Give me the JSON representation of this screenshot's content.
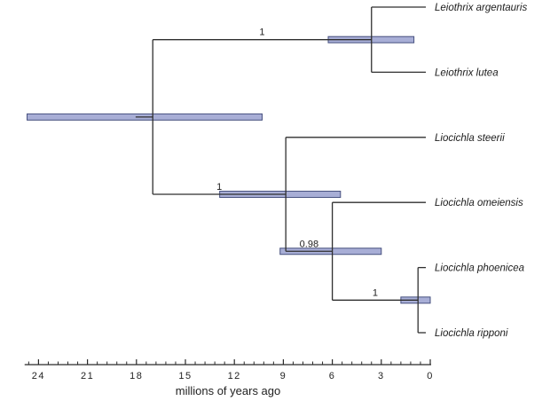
{
  "figure": {
    "background": "#ffffff",
    "description": "Bayesian chronogram (dated phylogenetic tree) with node age 95% HPD bars and posterior probability labels"
  },
  "style": {
    "branch_color": "#2f2f2f",
    "bar_fill": "#a8aed6",
    "bar_stroke": "#46507f",
    "axis_color": "#2a2a2a",
    "text_color": "#1c1c1c"
  },
  "chart_data": {
    "type": "phylogenetic-tree-chronogram",
    "time_unit": "millions of years ago (Ma)",
    "axis": {
      "label": "millions of years ago",
      "major_ticks": [
        24,
        21,
        18,
        15,
        12,
        9,
        6,
        3,
        0
      ],
      "minor_tick_interval": 0.6,
      "axis_max": 24.85,
      "orientation": "time decreases rightward to 0 at present"
    },
    "tips": [
      {
        "name": "Leiothrix argentauris"
      },
      {
        "name": "Leiothrix lutea"
      },
      {
        "name": "Liocichla steerii"
      },
      {
        "name": "Liocichla omeiensis"
      },
      {
        "name": "Liocichla phoenicea"
      },
      {
        "name": "Liocichla ripponi"
      }
    ],
    "nodes": {
      "root": {
        "age": 17.0,
        "hpd": [
          24.7,
          10.3
        ],
        "support": null,
        "stem_age": 18.05,
        "children": [
          "node:leiothrix",
          "node:liocichla1"
        ]
      },
      "leiothrix": {
        "age": 3.6,
        "hpd": [
          6.25,
          1.0
        ],
        "support": "1",
        "children": [
          "tip:0",
          "tip:1"
        ]
      },
      "liocichla1": {
        "age": 8.85,
        "hpd": [
          12.9,
          5.5
        ],
        "support": "1",
        "children": [
          "tip:2",
          "node:liocichla2"
        ]
      },
      "liocichla2": {
        "age": 6.0,
        "hpd": [
          9.2,
          3.0
        ],
        "support": "0.98",
        "children": [
          "tip:3",
          "node:liocichla3"
        ]
      },
      "liocichla3": {
        "age": 0.75,
        "hpd": [
          1.8,
          0.0
        ],
        "support": "1",
        "children": [
          "tip:4",
          "tip:5"
        ]
      }
    }
  }
}
